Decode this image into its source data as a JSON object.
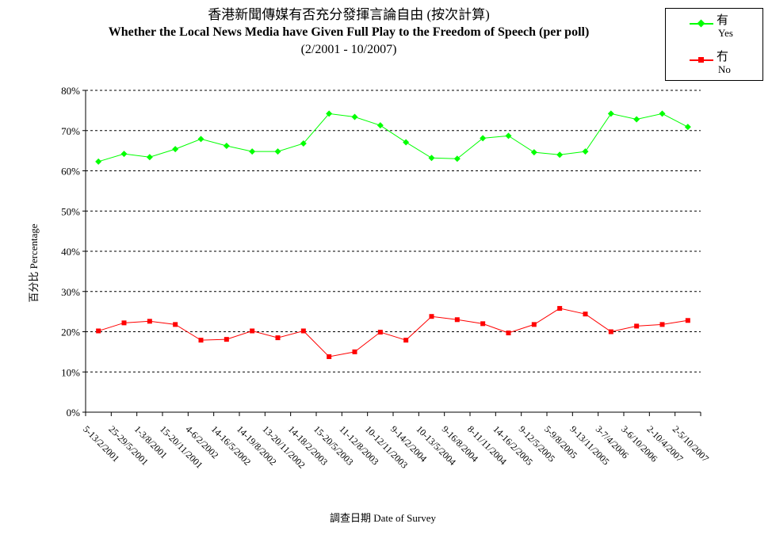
{
  "header": {
    "title_zh": "香港新聞傳媒有否充分發揮言論自由 (按次計算)",
    "title_en": "Whether the Local News Media have Given Full Play to the Freedom of Speech (per poll)",
    "date_range": "(2/2001 - 10/2007)"
  },
  "legend": {
    "yes_zh": "有",
    "yes_en": "Yes",
    "no_zh": "冇",
    "no_en": "No"
  },
  "colors": {
    "yes": "#00ff00",
    "no": "#ff0000",
    "grid": "#000000"
  },
  "chart_data": {
    "type": "line",
    "ylabel": "百分比 Percentage",
    "xlabel": "調查日期 Date of Survey",
    "ylim": [
      0,
      80
    ],
    "yticks": [
      "0%",
      "10%",
      "20%",
      "30%",
      "40%",
      "50%",
      "60%",
      "70%",
      "80%"
    ],
    "grid": "horizontal dashed",
    "legend_position": "top-right",
    "categories": [
      "5-13/2/2001",
      "25-29/5/2001",
      "1-3/8/2001",
      "15-20/11/2001",
      "4-6/2/2002",
      "14-16/5/2002",
      "14-19/8/2002",
      "13-20/11/2002",
      "14-18/2/2003",
      "15-20/5/2003",
      "11-12/8/2003",
      "10-12/11/2003",
      "9-14/2/2004",
      "10-13/5/2004",
      "9-16/8/2004",
      "8-11/11/2004",
      "14-16/2/2005",
      "9-12/5/2005",
      "5-9/8/2005",
      "9-13/11/2005",
      "3-7/4/2006",
      "3-6/10/2006",
      "2-10/4/2007",
      "2-5/10/2007"
    ],
    "series": [
      {
        "name": "有 Yes",
        "values": [
          62.3,
          64.2,
          63.4,
          65.4,
          67.9,
          66.2,
          64.8,
          64.8,
          66.8,
          74.2,
          73.4,
          71.3,
          67.1,
          63.2,
          63.0,
          68.1,
          68.7,
          64.6,
          64.0,
          64.8,
          74.2,
          72.8,
          74.2,
          70.9
        ]
      },
      {
        "name": "冇 No",
        "values": [
          20.2,
          22.2,
          22.6,
          21.8,
          17.9,
          18.1,
          20.2,
          18.5,
          20.2,
          13.8,
          15.0,
          19.9,
          17.9,
          23.8,
          23.0,
          22.0,
          19.7,
          21.8,
          25.8,
          24.4,
          20.0,
          21.4,
          21.8,
          22.8
        ]
      }
    ]
  }
}
